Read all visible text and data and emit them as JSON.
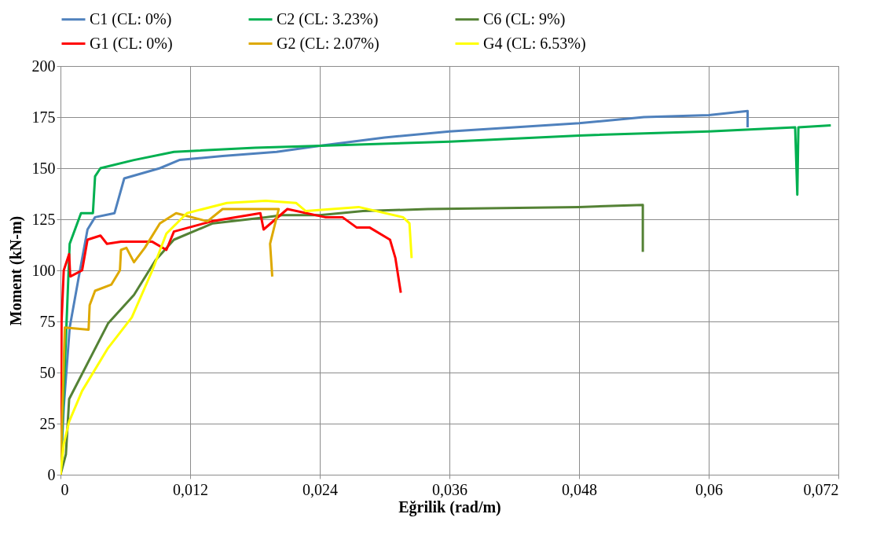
{
  "chart_data": {
    "type": "line",
    "xlabel": "Eğrilik (rad/m)",
    "ylabel": "Moment (kN-m)",
    "xlim": [
      0,
      0.072
    ],
    "xticks": [
      0,
      {
        "value": 0.012,
        "label": "0,012"
      },
      {
        "value": 0.024,
        "label": "0,024"
      },
      {
        "value": 0.036,
        "label": "0,036"
      },
      {
        "value": 0.048,
        "label": "0,048"
      },
      {
        "value": 0.06,
        "label": "0,06"
      },
      {
        "value": 0.072,
        "label": "0,072"
      }
    ],
    "ylim": [
      0,
      200
    ],
    "yticks": [
      0,
      25,
      50,
      75,
      100,
      125,
      150,
      175,
      200
    ],
    "grid": true,
    "legend": "top",
    "marker": "none",
    "line_style": "solid",
    "series": [
      {
        "name": "C1 (CL: 0%)",
        "color": "#4f81bd",
        "x": [
          0,
          0.0003,
          0.00085,
          0.0017,
          0.0025,
          0.0032,
          0.005,
          0.0059,
          0.0092,
          0.011,
          0.015,
          0.02,
          0.024,
          0.03,
          0.036,
          0.042,
          0.048,
          0.054,
          0.06,
          0.0636,
          0.0636
        ],
        "values": [
          0,
          33,
          72,
          97,
          120,
          126,
          128,
          145,
          150,
          154,
          156,
          158,
          161,
          165,
          168,
          170,
          172,
          175,
          176,
          178,
          170
        ]
      },
      {
        "name": "C2 (CL: 3.23%)",
        "color": "#00b050",
        "x": [
          0,
          0.00085,
          0.0019,
          0.003,
          0.0032,
          0.0037,
          0.0068,
          0.0105,
          0.018,
          0.024,
          0.036,
          0.048,
          0.06,
          0.068,
          0.0682,
          0.0683,
          0.0713
        ],
        "values": [
          0,
          113,
          128,
          128,
          146,
          150,
          154,
          158,
          160,
          161,
          163,
          166,
          168,
          170,
          137,
          170,
          171
        ]
      },
      {
        "name": "C6 (CL: 9%)",
        "color": "#548235",
        "x": [
          0,
          0.0005,
          0.0008,
          0.0044,
          0.0068,
          0.0088,
          0.0105,
          0.0141,
          0.019,
          0.0205,
          0.024,
          0.028,
          0.034,
          0.048,
          0.0539,
          0.0539
        ],
        "values": [
          0,
          10,
          37,
          74,
          88,
          105,
          115,
          123,
          126,
          127,
          127,
          129,
          130,
          131,
          132,
          109
        ]
      },
      {
        "name": "G1 (CL: 0%)",
        "color": "#ff0000",
        "x": [
          0,
          0.0001,
          0.0003,
          0.0008,
          0.0009,
          0.002,
          0.0025,
          0.0037,
          0.0043,
          0.0056,
          0.0085,
          0.0098,
          0.0105,
          0.014,
          0.0185,
          0.0188,
          0.021,
          0.0245,
          0.0261,
          0.0274,
          0.0286,
          0.0305,
          0.031,
          0.0315
        ],
        "values": [
          0,
          75,
          100,
          108,
          97,
          100,
          115,
          117,
          113,
          114,
          114,
          110,
          119,
          124,
          128,
          120,
          130,
          126,
          126,
          121,
          121,
          115,
          106,
          89
        ]
      },
      {
        "name": "G2 (CL: 2.07%)",
        "color": "#dea900",
        "x": [
          0,
          0.0004,
          0.0026,
          0.0027,
          0.0032,
          0.0047,
          0.0055,
          0.0056,
          0.0061,
          0.0068,
          0.0078,
          0.0092,
          0.0107,
          0.0136,
          0.015,
          0.0185,
          0.0202,
          0.0194,
          0.0196
        ],
        "values": [
          0,
          72,
          71,
          83,
          90,
          93,
          100,
          110,
          111,
          104,
          111,
          123,
          128,
          124,
          130,
          130,
          130,
          113,
          97
        ]
      },
      {
        "name": "G4 (CL: 6.53%)",
        "color": "#ffff00",
        "x": [
          0,
          0.0003,
          0.0008,
          0.002,
          0.0044,
          0.0066,
          0.0085,
          0.0098,
          0.0117,
          0.0154,
          0.019,
          0.0218,
          0.0227,
          0.0276,
          0.0317,
          0.0323,
          0.0325
        ],
        "values": [
          0,
          15,
          26,
          41,
          62,
          77,
          100,
          118,
          128,
          133,
          134,
          133,
          129,
          131,
          126,
          123,
          106
        ]
      }
    ]
  }
}
